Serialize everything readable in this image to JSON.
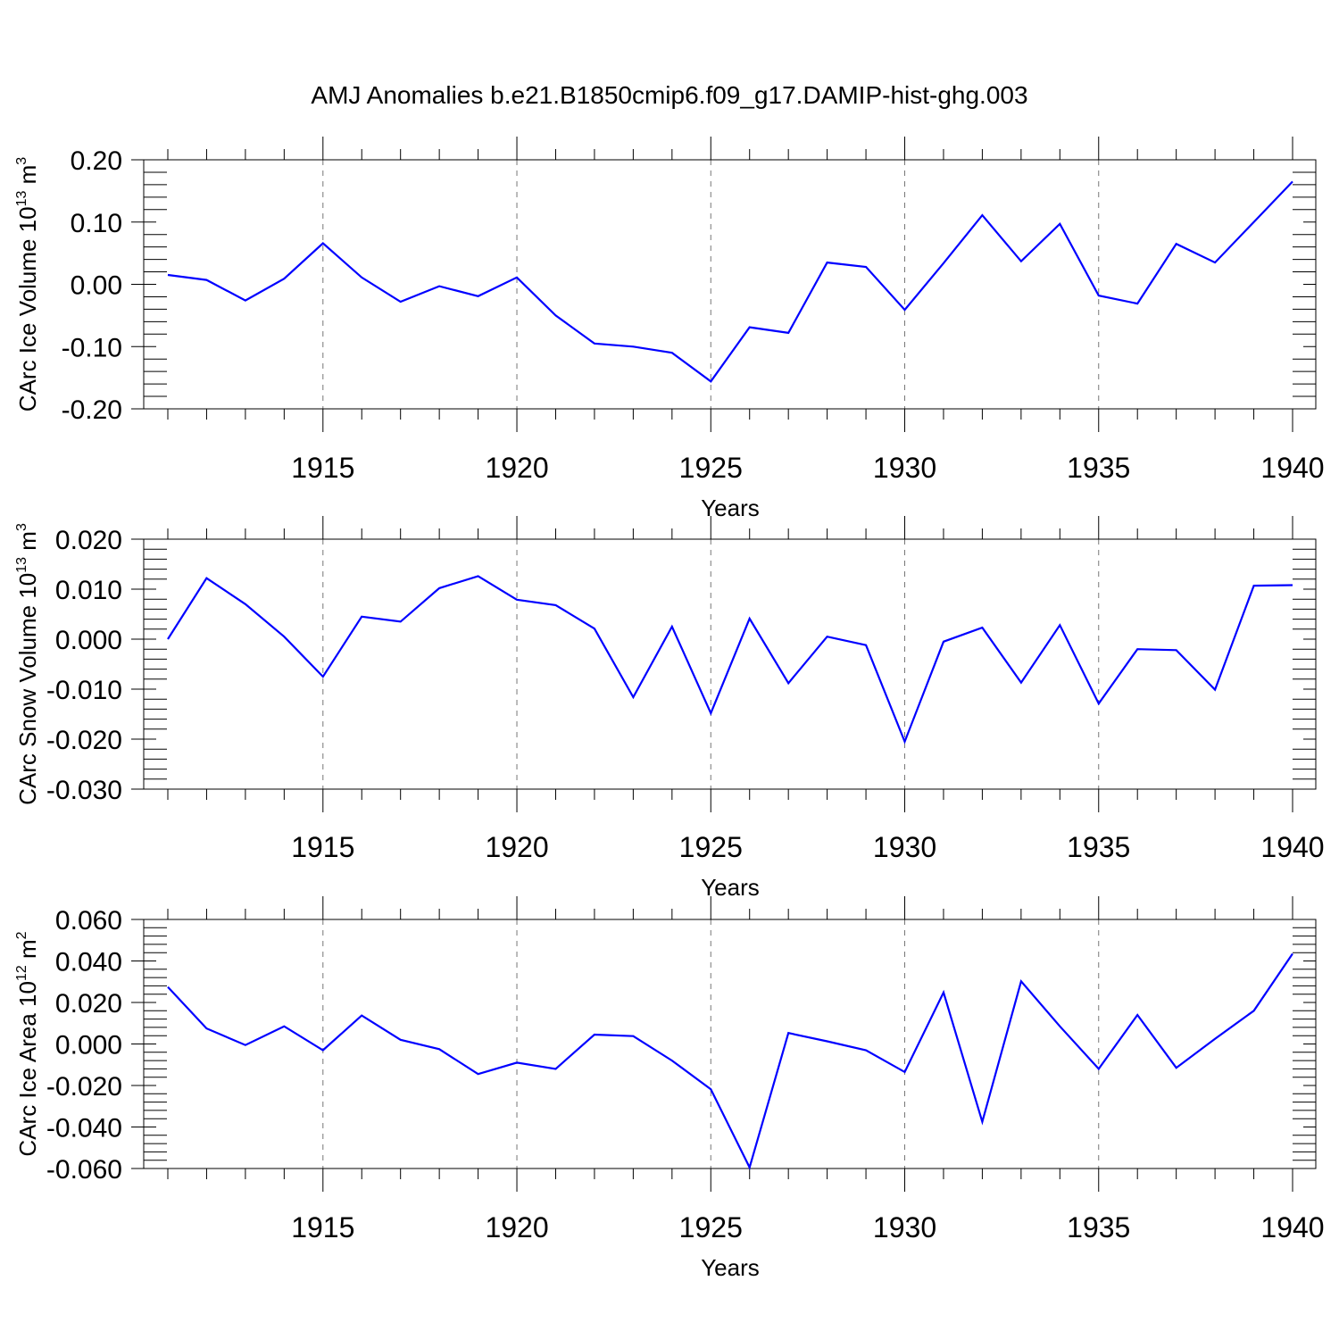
{
  "chart_data": [
    {
      "type": "line",
      "title": "AMJ Anomalies b.e21.B1850cmip6.f09_g17.DAMIP-hist-ghg.003",
      "ylabel_main": "CArc Ice Volume 10",
      "ylabel_exp": "13",
      "ylabel_unit": "m",
      "ylabel_unit_exp": "3",
      "xlabel": "Years",
      "xlim": [
        1911,
        1940
      ],
      "ylim": [
        -0.2,
        0.2
      ],
      "xticks": [
        "1915",
        "1920",
        "1925",
        "1930",
        "1935",
        "1940"
      ],
      "yticks": [
        "0.20",
        "0.10",
        "0.00",
        "-0.10",
        "-0.20"
      ],
      "ytick_values": [
        0.2,
        0.1,
        0.0,
        -0.1,
        -0.2
      ],
      "x": [
        1911,
        1912,
        1913,
        1914,
        1915,
        1916,
        1917,
        1918,
        1919,
        1920,
        1921,
        1922,
        1923,
        1924,
        1925,
        1926,
        1927,
        1928,
        1929,
        1930,
        1931,
        1932,
        1933,
        1934,
        1935,
        1936,
        1937,
        1938,
        1939,
        1940
      ],
      "values": [
        0.015,
        0.007,
        -0.026,
        0.009,
        0.066,
        0.011,
        -0.028,
        -0.003,
        -0.019,
        0.011,
        -0.05,
        -0.095,
        -0.1,
        -0.11,
        -0.156,
        -0.069,
        -0.078,
        0.035,
        0.028,
        -0.041,
        0.034,
        0.111,
        0.037,
        0.097,
        -0.018,
        -0.031,
        0.065,
        0.035,
        0.1,
        0.165
      ]
    },
    {
      "type": "line",
      "ylabel_main": "CArc Snow Volume 10",
      "ylabel_exp": "13",
      "ylabel_unit": "m",
      "ylabel_unit_exp": "3",
      "xlabel": "Years",
      "xlim": [
        1911,
        1940
      ],
      "ylim": [
        -0.03,
        0.02
      ],
      "xticks": [
        "1915",
        "1920",
        "1925",
        "1930",
        "1935",
        "1940"
      ],
      "yticks": [
        "0.020",
        "0.010",
        "0.000",
        "-0.010",
        "-0.020",
        "-0.030"
      ],
      "ytick_values": [
        0.02,
        0.01,
        0.0,
        -0.01,
        -0.02,
        -0.03
      ],
      "x": [
        1911,
        1912,
        1913,
        1914,
        1915,
        1916,
        1917,
        1918,
        1919,
        1920,
        1921,
        1922,
        1923,
        1924,
        1925,
        1926,
        1927,
        1928,
        1929,
        1930,
        1931,
        1932,
        1933,
        1934,
        1935,
        1936,
        1937,
        1938,
        1939,
        1940
      ],
      "values": [
        0.0,
        0.0122,
        0.007,
        0.0005,
        -0.0075,
        0.0045,
        0.0035,
        0.0102,
        0.0126,
        0.0079,
        0.0068,
        0.0021,
        -0.0116,
        0.0025,
        -0.0148,
        0.0041,
        -0.0088,
        0.0005,
        -0.0012,
        -0.0205,
        -0.0005,
        0.0023,
        -0.0087,
        0.0028,
        -0.0129,
        -0.002,
        -0.0022,
        -0.0101,
        0.0107,
        0.0108
      ]
    },
    {
      "type": "line",
      "ylabel_main": "CArc Ice Area 10",
      "ylabel_exp": "12",
      "ylabel_unit": "m",
      "ylabel_unit_exp": "2",
      "xlabel": "Years",
      "xlim": [
        1911,
        1940
      ],
      "ylim": [
        -0.06,
        0.06
      ],
      "xticks": [
        "1915",
        "1920",
        "1925",
        "1930",
        "1935",
        "1940"
      ],
      "yticks": [
        "0.060",
        "0.040",
        "0.020",
        "0.000",
        "-0.020",
        "-0.040",
        "-0.060"
      ],
      "ytick_values": [
        0.06,
        0.04,
        0.02,
        0.0,
        -0.02,
        -0.04,
        -0.06
      ],
      "x": [
        1911,
        1912,
        1913,
        1914,
        1915,
        1916,
        1917,
        1918,
        1919,
        1920,
        1921,
        1922,
        1923,
        1924,
        1925,
        1926,
        1927,
        1928,
        1929,
        1930,
        1931,
        1932,
        1933,
        1934,
        1935,
        1936,
        1937,
        1938,
        1939,
        1940
      ],
      "values": [
        0.0275,
        0.0075,
        -0.0005,
        0.0085,
        -0.003,
        0.0137,
        0.002,
        -0.0025,
        -0.0145,
        -0.009,
        -0.012,
        0.0045,
        0.0038,
        -0.008,
        -0.0218,
        -0.0595,
        0.0053,
        0.0013,
        -0.003,
        -0.0135,
        0.0248,
        -0.0375,
        0.0302,
        0.0085,
        -0.012,
        0.014,
        -0.0115,
        0.0025,
        0.016,
        0.0435
      ]
    }
  ]
}
